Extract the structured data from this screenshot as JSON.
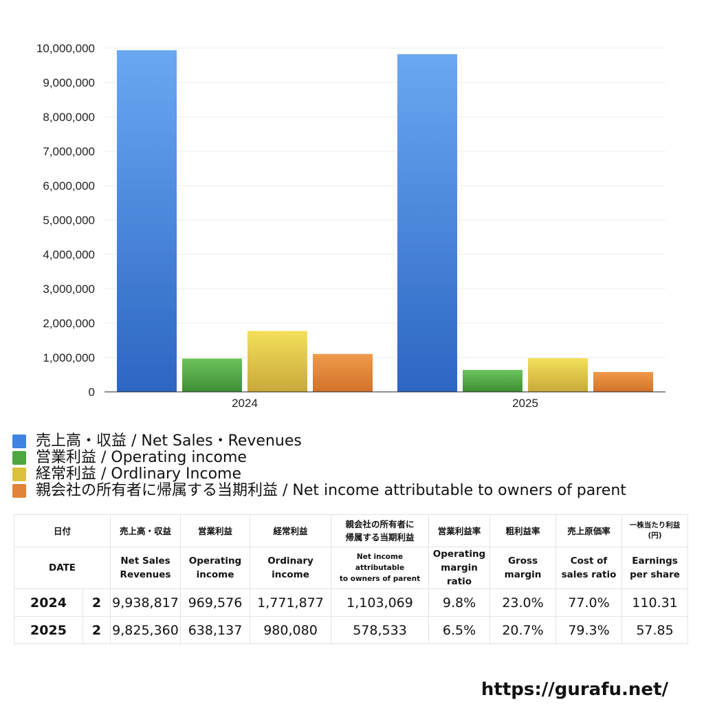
{
  "chart_data": {
    "type": "bar",
    "categories": [
      "2024",
      "2025"
    ],
    "ylim": [
      0,
      10000000
    ],
    "yticks": [
      "0",
      "1,000,000",
      "2,000,000",
      "3,000,000",
      "4,000,000",
      "5,000,000",
      "6,000,000",
      "7,000,000",
      "8,000,000",
      "9,000,000",
      "10,000,000"
    ],
    "ytick_values": [
      0,
      1000000,
      2000000,
      3000000,
      4000000,
      5000000,
      6000000,
      7000000,
      8000000,
      9000000,
      10000000
    ],
    "grid": true,
    "series": [
      {
        "name": "売上高・収益 / Net Sales・Revenues",
        "values": [
          9938817,
          9825360
        ],
        "color_top": "#6aa8f2",
        "color_bottom": "#2c66c2",
        "swatch": "#3f82e0"
      },
      {
        "name": "営業利益 / Operating income",
        "values": [
          969576,
          638137
        ],
        "color_top": "#6cc35c",
        "color_bottom": "#3e8f34",
        "swatch": "#4ea640"
      },
      {
        "name": "経常利益 / Ordlinary Income",
        "values": [
          1771877,
          980080
        ],
        "color_top": "#f3e05a",
        "color_bottom": "#c9a83a",
        "swatch": "#dcc13e"
      },
      {
        "name": "親会社の所有者に帰属する当期利益 / Net income attributable to owners of parent",
        "values": [
          1103069,
          578533
        ],
        "color_top": "#ef9a4a",
        "color_bottom": "#d2722a",
        "swatch": "#e0843a"
      }
    ]
  },
  "table": {
    "header_ja": {
      "date": "日付",
      "net_sales": "売上高・収益",
      "operating_income": "営業利益",
      "ordinary_income": "経常利益",
      "net_income_l1": "親会社の所有者に",
      "net_income_l2": "帰属する当期利益",
      "op_margin": "営業利益率",
      "gross_margin": "粗利益率",
      "cost_ratio": "売上原価率",
      "eps_l1": "一株当たり利益",
      "eps_l2": "(円)"
    },
    "header_en": {
      "date": "DATE",
      "net_sales_l1": "Net Sales",
      "net_sales_l2": "Revenues",
      "operating_income_l1": "Operating",
      "operating_income_l2": "income",
      "ordinary_income_l1": "Ordinary",
      "ordinary_income_l2": "income",
      "net_income_l1": "Net income attributable",
      "net_income_l2": "to owners of parent",
      "op_margin_l1": "Operating",
      "op_margin_l2": "margin",
      "op_margin_l3": "ratio",
      "gross_margin_l1": "Gross",
      "gross_margin_l2": "margin",
      "cost_ratio_l1": "Cost of",
      "cost_ratio_l2": "sales ratio",
      "eps_l1": "Earnings",
      "eps_l2": "per share"
    },
    "rows": [
      {
        "year": "2024",
        "month": "2",
        "net_sales": "9,938,817",
        "operating_income": "969,576",
        "ordinary_income": "1,771,877",
        "net_income": "1,103,069",
        "op_margin": "9.8%",
        "gross_margin": "23.0%",
        "cost_ratio": "77.0%",
        "eps": "110.31"
      },
      {
        "year": "2025",
        "month": "2",
        "net_sales": "9,825,360",
        "operating_income": "638,137",
        "ordinary_income": "980,080",
        "net_income": "578,533",
        "op_margin": "6.5%",
        "gross_margin": "20.7%",
        "cost_ratio": "79.3%",
        "eps": "57.85"
      }
    ]
  },
  "footer": {
    "site": "https://gurafu.net/"
  }
}
